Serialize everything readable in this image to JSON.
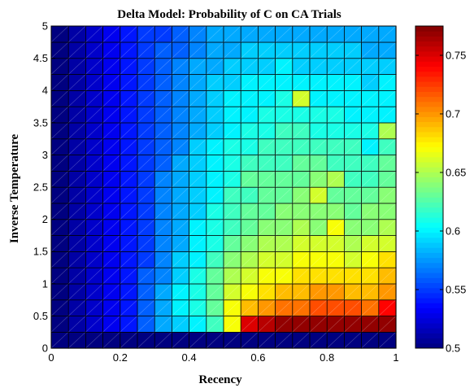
{
  "chart_data": {
    "type": "heatmap",
    "title": "Delta Model: Probability of C on CA Trials",
    "xlabel": "Recency",
    "ylabel": "Inverse Temperature",
    "xlim": [
      0,
      1
    ],
    "ylim": [
      0,
      5
    ],
    "xticks": [
      0,
      0.2,
      0.4,
      0.6,
      0.8,
      1
    ],
    "xtick_labels": [
      "0",
      "0.2",
      "0.4",
      "0.6",
      "0.8",
      "1"
    ],
    "yticks": [
      0,
      0.5,
      1,
      1.5,
      2,
      2.5,
      3,
      3.5,
      4,
      4.5,
      5
    ],
    "ytick_labels": [
      "0",
      "0.5",
      "1",
      "1.5",
      "2",
      "2.5",
      "3",
      "3.5",
      "4",
      "4.5",
      "5"
    ],
    "colorbar": {
      "limits": [
        0.5,
        0.775
      ],
      "ticks": [
        0.5,
        0.55,
        0.6,
        0.65,
        0.7,
        0.75
      ],
      "tick_labels": [
        "0.5",
        "0.55",
        "0.6",
        "0.65",
        "0.7",
        "0.75"
      ],
      "colormap": "jet"
    },
    "grid_shape": {
      "rows": 20,
      "cols": 20
    },
    "note_rows": "values[0] is the bottom row (Inverse Temperature 0 to 0.25); columns go left to right in Recency",
    "values": [
      [
        0.5,
        0.5,
        0.5,
        0.5,
        0.5,
        0.5,
        0.5,
        0.5,
        0.5,
        0.5,
        0.5,
        0.5,
        0.5,
        0.5,
        0.5,
        0.5,
        0.5,
        0.5,
        0.5,
        0.5
      ],
      [
        0.5,
        0.51,
        0.52,
        0.53,
        0.54,
        0.56,
        0.58,
        0.59,
        0.6,
        0.62,
        0.67,
        0.75,
        0.76,
        0.77,
        0.77,
        0.77,
        0.77,
        0.77,
        0.77,
        0.77
      ],
      [
        0.5,
        0.51,
        0.52,
        0.53,
        0.54,
        0.56,
        0.58,
        0.6,
        0.61,
        0.63,
        0.67,
        0.69,
        0.7,
        0.71,
        0.71,
        0.72,
        0.72,
        0.72,
        0.71,
        0.74
      ],
      [
        0.5,
        0.51,
        0.52,
        0.53,
        0.54,
        0.56,
        0.58,
        0.6,
        0.61,
        0.63,
        0.66,
        0.67,
        0.68,
        0.69,
        0.69,
        0.7,
        0.7,
        0.69,
        0.69,
        0.7
      ],
      [
        0.5,
        0.51,
        0.52,
        0.53,
        0.54,
        0.56,
        0.57,
        0.59,
        0.61,
        0.63,
        0.65,
        0.66,
        0.67,
        0.67,
        0.68,
        0.68,
        0.68,
        0.68,
        0.68,
        0.69
      ],
      [
        0.5,
        0.51,
        0.52,
        0.53,
        0.54,
        0.55,
        0.57,
        0.59,
        0.6,
        0.62,
        0.64,
        0.65,
        0.66,
        0.66,
        0.67,
        0.67,
        0.67,
        0.66,
        0.67,
        0.68
      ],
      [
        0.5,
        0.51,
        0.52,
        0.53,
        0.54,
        0.55,
        0.57,
        0.58,
        0.6,
        0.61,
        0.63,
        0.64,
        0.65,
        0.65,
        0.66,
        0.66,
        0.66,
        0.65,
        0.66,
        0.66
      ],
      [
        0.5,
        0.51,
        0.52,
        0.53,
        0.54,
        0.55,
        0.57,
        0.58,
        0.6,
        0.61,
        0.62,
        0.63,
        0.64,
        0.64,
        0.65,
        0.64,
        0.67,
        0.64,
        0.64,
        0.65
      ],
      [
        0.5,
        0.51,
        0.52,
        0.53,
        0.54,
        0.55,
        0.57,
        0.58,
        0.59,
        0.61,
        0.62,
        0.63,
        0.63,
        0.64,
        0.64,
        0.64,
        0.64,
        0.63,
        0.64,
        0.64
      ],
      [
        0.5,
        0.51,
        0.52,
        0.53,
        0.54,
        0.55,
        0.57,
        0.58,
        0.59,
        0.6,
        0.62,
        0.62,
        0.63,
        0.63,
        0.64,
        0.66,
        0.63,
        0.63,
        0.63,
        0.64
      ],
      [
        0.5,
        0.51,
        0.52,
        0.53,
        0.54,
        0.55,
        0.57,
        0.58,
        0.59,
        0.6,
        0.61,
        0.63,
        0.63,
        0.63,
        0.63,
        0.64,
        0.65,
        0.62,
        0.62,
        0.63
      ],
      [
        0.5,
        0.51,
        0.52,
        0.53,
        0.54,
        0.55,
        0.56,
        0.58,
        0.59,
        0.6,
        0.61,
        0.62,
        0.62,
        0.62,
        0.63,
        0.63,
        0.62,
        0.62,
        0.62,
        0.63
      ],
      [
        0.5,
        0.51,
        0.52,
        0.53,
        0.54,
        0.55,
        0.56,
        0.57,
        0.59,
        0.6,
        0.61,
        0.61,
        0.62,
        0.62,
        0.62,
        0.62,
        0.62,
        0.62,
        0.6,
        0.62
      ],
      [
        0.5,
        0.51,
        0.52,
        0.53,
        0.54,
        0.55,
        0.56,
        0.57,
        0.58,
        0.59,
        0.6,
        0.61,
        0.61,
        0.62,
        0.62,
        0.61,
        0.61,
        0.61,
        0.61,
        0.65
      ],
      [
        0.5,
        0.51,
        0.52,
        0.53,
        0.54,
        0.55,
        0.56,
        0.57,
        0.58,
        0.59,
        0.6,
        0.6,
        0.61,
        0.61,
        0.61,
        0.61,
        0.61,
        0.6,
        0.6,
        0.6
      ],
      [
        0.5,
        0.51,
        0.52,
        0.53,
        0.54,
        0.55,
        0.56,
        0.57,
        0.58,
        0.59,
        0.6,
        0.6,
        0.6,
        0.61,
        0.66,
        0.6,
        0.6,
        0.6,
        0.6,
        0.6
      ],
      [
        0.5,
        0.51,
        0.52,
        0.53,
        0.54,
        0.55,
        0.56,
        0.57,
        0.58,
        0.59,
        0.59,
        0.6,
        0.6,
        0.6,
        0.6,
        0.6,
        0.6,
        0.6,
        0.59,
        0.6
      ],
      [
        0.5,
        0.51,
        0.52,
        0.53,
        0.54,
        0.55,
        0.56,
        0.57,
        0.58,
        0.58,
        0.59,
        0.59,
        0.59,
        0.6,
        0.59,
        0.59,
        0.59,
        0.59,
        0.59,
        0.59
      ],
      [
        0.5,
        0.51,
        0.52,
        0.53,
        0.54,
        0.55,
        0.56,
        0.56,
        0.57,
        0.58,
        0.58,
        0.59,
        0.59,
        0.59,
        0.59,
        0.59,
        0.59,
        0.59,
        0.58,
        0.58
      ],
      [
        0.5,
        0.51,
        0.52,
        0.53,
        0.54,
        0.55,
        0.55,
        0.56,
        0.57,
        0.58,
        0.58,
        0.58,
        0.58,
        0.58,
        0.58,
        0.58,
        0.58,
        0.58,
        0.58,
        0.58
      ]
    ]
  }
}
